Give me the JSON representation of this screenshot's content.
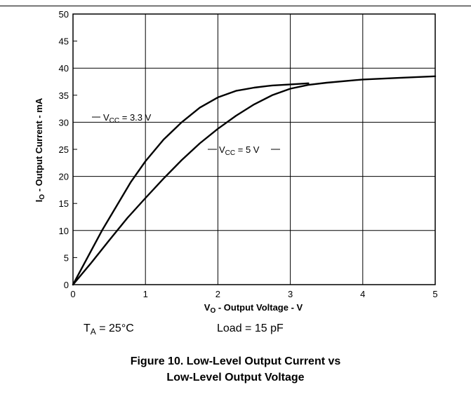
{
  "chart_data": {
    "type": "line",
    "xlabel": {
      "main": "V",
      "sub": "O",
      "rest": " - Output Voltage - V"
    },
    "ylabel": {
      "main": "I",
      "sub": "O",
      "rest": " - Output Current - mA"
    },
    "xlim": [
      0,
      5
    ],
    "ylim": [
      0,
      50
    ],
    "xticks": [
      "0",
      "1",
      "2",
      "3",
      "4",
      "5"
    ],
    "yticks": [
      "0",
      "5",
      "10",
      "15",
      "20",
      "25",
      "30",
      "35",
      "40",
      "45",
      "50"
    ],
    "grid": true,
    "series": [
      {
        "name": {
          "main": "V",
          "sub": "CC",
          "rest": " = 3.3 V"
        },
        "x": [
          0,
          0.2,
          0.4,
          0.6,
          0.8,
          1.0,
          1.25,
          1.5,
          1.75,
          2.0,
          2.25,
          2.5,
          2.75,
          3.0,
          3.25
        ],
        "y": [
          0,
          5.0,
          10.0,
          14.5,
          19.0,
          22.8,
          26.8,
          30.0,
          32.7,
          34.6,
          35.8,
          36.4,
          36.8,
          37.0,
          37.2
        ]
      },
      {
        "name": {
          "main": "V",
          "sub": "CC",
          "rest": " = 5 V"
        },
        "x": [
          0,
          0.25,
          0.5,
          0.75,
          1.0,
          1.25,
          1.5,
          1.75,
          2.0,
          2.25,
          2.5,
          2.75,
          3.0,
          3.25,
          3.5,
          4.0,
          4.5,
          5.0
        ],
        "y": [
          0,
          4.0,
          8.2,
          12.3,
          16.0,
          19.6,
          23.0,
          26.1,
          28.8,
          31.2,
          33.3,
          35.0,
          36.2,
          36.9,
          37.3,
          37.9,
          38.2,
          38.5
        ]
      }
    ]
  },
  "conditions": {
    "ta": {
      "main": "T",
      "sub": "A",
      "rest": " = 25°C"
    },
    "load": "Load = 15 pF"
  },
  "caption": {
    "line1": "Figure 10. Low-Level Output Current vs",
    "line2": "Low-Level Output Voltage"
  }
}
